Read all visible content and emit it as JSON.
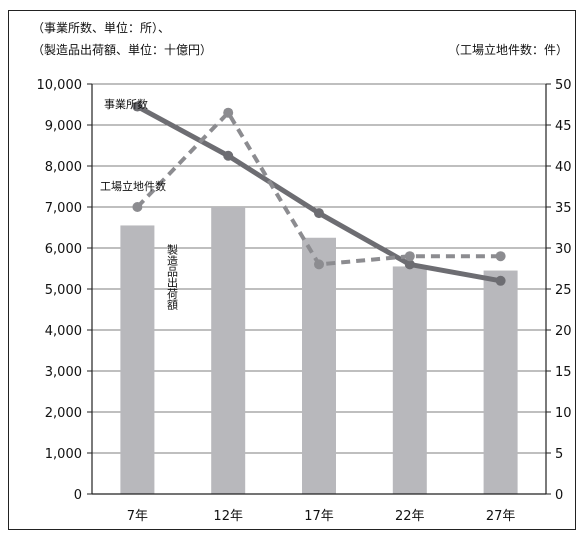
{
  "header": {
    "left_line1": "（事業所数、単位：所）、",
    "left_line2": "（製造品出荷額、単位：十億円）",
    "right": "（工場立地件数：件）"
  },
  "chart_data": {
    "type": "bar",
    "categories": [
      "7年",
      "12年",
      "17年",
      "22年",
      "27年"
    ],
    "left_axis": {
      "ylim": [
        0,
        10000
      ],
      "ticks": [
        "0",
        "1,000",
        "2,000",
        "3,000",
        "4,000",
        "5,000",
        "6,000",
        "7,000",
        "8,000",
        "9,000",
        "10,000"
      ]
    },
    "right_axis": {
      "ylim": [
        0,
        50
      ],
      "ticks": [
        "0",
        "5",
        "10",
        "15",
        "20",
        "25",
        "30",
        "35",
        "40",
        "45",
        "50"
      ]
    },
    "grid": true,
    "series": [
      {
        "name": "製造品出荷額",
        "type": "bar",
        "axis": "left",
        "values": [
          6550,
          7000,
          6250,
          5550,
          5450
        ],
        "color": "#b8b8bc"
      },
      {
        "name": "事業所数",
        "type": "line",
        "axis": "left",
        "style": "solid",
        "values": [
          9450,
          8250,
          6850,
          5600,
          5200
        ],
        "color": "#6d6d72"
      },
      {
        "name": "工場立地件数",
        "type": "line",
        "axis": "right",
        "style": "dashed",
        "values": [
          35,
          46.5,
          28,
          29,
          29
        ],
        "color": "#8c8c90"
      }
    ],
    "annotations": {
      "jigyousho": "事業所数",
      "kojo": "工場立地件数",
      "shukka": "製造品出荷額"
    }
  }
}
